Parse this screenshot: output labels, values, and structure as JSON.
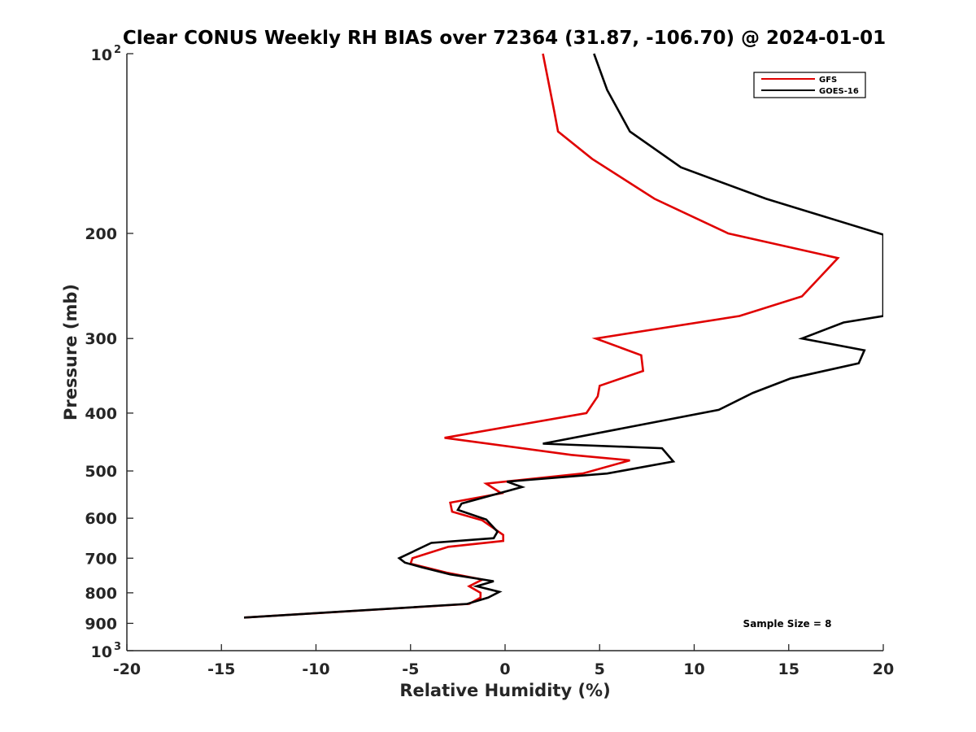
{
  "chart_data": {
    "type": "line",
    "title": "Clear CONUS Weekly RH BIAS over 72364 (31.87, -106.70) @ 2024-01-01",
    "xlabel": "Relative Humidity (%)",
    "ylabel": "Pressure (mb)",
    "xlim": [
      -20,
      20
    ],
    "ylim": [
      100,
      1000
    ],
    "y_scale": "log",
    "y_reversed": true,
    "grid": false,
    "legend_position": "top-right",
    "x_ticks": [
      -20,
      -15,
      -10,
      -5,
      0,
      5,
      10,
      15,
      20
    ],
    "x_tick_labels": [
      "-20",
      "-15",
      "-10",
      "-5",
      "0",
      "5",
      "10",
      "15",
      "20"
    ],
    "y_ticks": [
      100,
      200,
      300,
      400,
      500,
      600,
      700,
      800,
      900,
      1000
    ],
    "y_tick_labels": [
      {
        "base": "10",
        "exp": "2"
      },
      {
        "base": "200",
        "exp": ""
      },
      {
        "base": "300",
        "exp": ""
      },
      {
        "base": "400",
        "exp": ""
      },
      {
        "base": "500",
        "exp": ""
      },
      {
        "base": "600",
        "exp": ""
      },
      {
        "base": "700",
        "exp": ""
      },
      {
        "base": "800",
        "exp": ""
      },
      {
        "base": "900",
        "exp": ""
      },
      {
        "base": "10",
        "exp": "3"
      }
    ],
    "annotation": "Sample Size = 8",
    "series": [
      {
        "name": "GFS",
        "color": "#e00000",
        "points": [
          [
            2.0,
            100
          ],
          [
            2.6,
            125
          ],
          [
            2.8,
            135
          ],
          [
            4.6,
            150
          ],
          [
            7.9,
            175
          ],
          [
            11.8,
            200
          ],
          [
            17.6,
            220
          ],
          [
            15.7,
            255
          ],
          [
            12.4,
            275
          ],
          [
            4.8,
            300
          ],
          [
            7.2,
            320
          ],
          [
            7.3,
            340
          ],
          [
            5.0,
            360
          ],
          [
            4.9,
            375
          ],
          [
            4.3,
            400
          ],
          [
            -3.2,
            440
          ],
          [
            3.5,
            470
          ],
          [
            6.6,
            480
          ],
          [
            4.1,
            505
          ],
          [
            -1.0,
            525
          ],
          [
            -0.2,
            545
          ],
          [
            -2.9,
            565
          ],
          [
            -2.8,
            585
          ],
          [
            -1.2,
            605
          ],
          [
            -0.1,
            640
          ],
          [
            -0.1,
            655
          ],
          [
            -3.0,
            670
          ],
          [
            -4.9,
            700
          ],
          [
            -5.0,
            715
          ],
          [
            -3.1,
            740
          ],
          [
            -1.2,
            760
          ],
          [
            -1.9,
            780
          ],
          [
            -1.3,
            800
          ],
          [
            -1.3,
            815
          ],
          [
            -1.9,
            835
          ],
          [
            -13.8,
            880
          ]
        ]
      },
      {
        "name": "GOES-16",
        "color": "#000000",
        "points": [
          [
            4.7,
            100
          ],
          [
            5.4,
            115
          ],
          [
            6.6,
            135
          ],
          [
            9.3,
            155
          ],
          [
            13.8,
            175
          ],
          [
            20.0,
            201
          ],
          [
            20.0,
            275
          ],
          [
            17.9,
            282
          ],
          [
            15.7,
            300
          ],
          [
            19.0,
            314
          ],
          [
            18.7,
            330
          ],
          [
            15.1,
            350
          ],
          [
            13.1,
            370
          ],
          [
            11.3,
            395
          ],
          [
            2.0,
            450
          ],
          [
            8.3,
            458
          ],
          [
            8.9,
            482
          ],
          [
            5.4,
            505
          ],
          [
            0.1,
            521
          ],
          [
            0.9,
            532
          ],
          [
            -2.3,
            567
          ],
          [
            -2.5,
            581
          ],
          [
            -1.0,
            603
          ],
          [
            -0.4,
            632
          ],
          [
            -0.6,
            648
          ],
          [
            -3.9,
            660
          ],
          [
            -5.6,
            700
          ],
          [
            -5.3,
            712
          ],
          [
            -4.4,
            725
          ],
          [
            -2.9,
            745
          ],
          [
            -0.6,
            765
          ],
          [
            -1.5,
            780
          ],
          [
            -0.3,
            797
          ],
          [
            -0.9,
            815
          ],
          [
            -2.0,
            835
          ],
          [
            -13.8,
            880
          ]
        ]
      }
    ]
  }
}
